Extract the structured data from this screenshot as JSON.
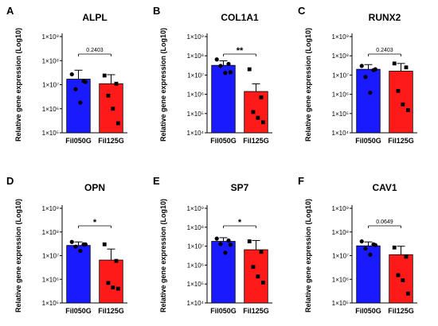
{
  "chart_data": [
    {
      "type": "bar",
      "panel": "A",
      "title": "ALPL",
      "ylabel": "Relative gene expression (Log10)",
      "yscale": "log",
      "ylim": [
        100000,
        1000000000
      ],
      "ytick_values": [
        100000,
        1000000,
        10000000,
        100000000,
        1000000000
      ],
      "yticks": [
        "1×10⁵",
        "1×10⁶",
        "1×10⁷",
        "1×10⁸",
        "1×10⁹"
      ],
      "categories": [
        "Fil050G",
        "Fil125G"
      ],
      "colors": [
        "#1a1aff",
        "#ff1a1a"
      ],
      "values": [
        17000000,
        11000000
      ],
      "error_upper": [
        40000000,
        26000000
      ],
      "points": [
        [
          27000000,
          14000000,
          6500000,
          1800000,
          13000000
        ],
        [
          24000000,
          11000000,
          3500000,
          1000000,
          250000
        ]
      ],
      "significance": "0.2403"
    },
    {
      "type": "bar",
      "panel": "B",
      "title": "COL1A1",
      "ylabel": "Relative gene expression (Log10)",
      "yscale": "log",
      "ylim": [
        10000,
        1000000000
      ],
      "ytick_values": [
        10000,
        100000,
        1000000,
        10000000,
        100000000,
        1000000000
      ],
      "yticks": [
        "1×10⁴",
        "1×10⁵",
        "1×10⁶",
        "1×10⁷",
        "1×10⁸",
        "1×10⁹"
      ],
      "categories": [
        "Fil050G",
        "Fil125G"
      ],
      "colors": [
        "#1a1aff",
        "#ff1a1a"
      ],
      "values": [
        32000000,
        1400000
      ],
      "error_upper": [
        55000000,
        3500000
      ],
      "points": [
        [
          65000000,
          38000000,
          30000000,
          13000000,
          14000000
        ],
        [
          20000000,
          700000,
          120000,
          60000,
          35000
        ]
      ],
      "significance": "**"
    },
    {
      "type": "bar",
      "panel": "C",
      "title": "RUNX2",
      "ylabel": "Relative gene expression (Log10)",
      "yscale": "log",
      "ylim": [
        10000,
        1000000000
      ],
      "ytick_values": [
        10000,
        100000,
        1000000,
        10000000,
        100000000,
        1000000000
      ],
      "yticks": [
        "1×10⁴",
        "1×10⁵",
        "1×10⁶",
        "1×10⁷",
        "1×10⁸",
        "1×10⁹"
      ],
      "categories": [
        "Fil050G",
        "Fil125G"
      ],
      "colors": [
        "#1a1aff",
        "#ff1a1a"
      ],
      "values": [
        20000000,
        16000000
      ],
      "error_upper": [
        35000000,
        40000000
      ],
      "points": [
        [
          30000000,
          18000000,
          8000000,
          1200000,
          20000000
        ],
        [
          40000000,
          25000000,
          1500000,
          300000,
          150000
        ]
      ],
      "significance": "0.2403"
    },
    {
      "type": "bar",
      "panel": "D",
      "title": "OPN",
      "ylabel": "Relative gene expression (Log10)",
      "yscale": "log",
      "ylim": [
        100000,
        1000000000
      ],
      "ytick_values": [
        100000,
        1000000,
        10000000,
        100000000,
        1000000000
      ],
      "yticks": [
        "1×10⁵",
        "1×10⁶",
        "1×10⁷",
        "1×10⁸",
        "1×10⁹"
      ],
      "categories": [
        "Fil050G",
        "Fil125G"
      ],
      "colors": [
        "#1a1aff",
        "#ff1a1a"
      ],
      "values": [
        27000000,
        6500000
      ],
      "error_upper": [
        38000000,
        19000000
      ],
      "points": [
        [
          38000000,
          30000000,
          24000000,
          16000000,
          30000000
        ],
        [
          30000000,
          6000000,
          700000,
          450000,
          400000
        ]
      ],
      "significance": "*"
    },
    {
      "type": "bar",
      "panel": "E",
      "title": "SP7",
      "ylabel": "Relative gene expression (Log10)",
      "yscale": "log",
      "ylim": [
        10000,
        1000000000
      ],
      "ytick_values": [
        10000,
        100000,
        1000000,
        10000000,
        100000000,
        1000000000
      ],
      "yticks": [
        "1×10⁴",
        "1×10⁵",
        "1×10⁶",
        "1×10⁷",
        "1×10⁸",
        "1×10⁹"
      ],
      "categories": [
        "Fil050G",
        "Fil125G"
      ],
      "colors": [
        "#1a1aff",
        "#ff1a1a"
      ],
      "values": [
        18000000,
        6500000
      ],
      "error_upper": [
        28000000,
        20000000
      ],
      "points": [
        [
          25000000,
          20000000,
          13000000,
          4500000,
          12000000
        ],
        [
          18000000,
          5000000,
          800000,
          250000,
          120000
        ]
      ],
      "significance": "*"
    },
    {
      "type": "bar",
      "panel": "F",
      "title": "CAV1",
      "ylabel": "Relative gene expression (Log10)",
      "yscale": "log",
      "ylim": [
        100000,
        1000000000
      ],
      "ytick_values": [
        100000,
        1000000,
        10000000,
        100000000,
        1000000000
      ],
      "yticks": [
        "1×10⁵",
        "1×10⁶",
        "1×10⁷",
        "1×10⁸",
        "1×10⁹"
      ],
      "categories": [
        "Fil050G",
        "Fil125G"
      ],
      "colors": [
        "#1a1aff",
        "#ff1a1a"
      ],
      "values": [
        26000000,
        11000000
      ],
      "error_upper": [
        38000000,
        25000000
      ],
      "points": [
        [
          40000000,
          30000000,
          20000000,
          11000000,
          28000000
        ],
        [
          22000000,
          9000000,
          1500000,
          900000,
          250000
        ]
      ],
      "significance": "0.0649"
    }
  ]
}
